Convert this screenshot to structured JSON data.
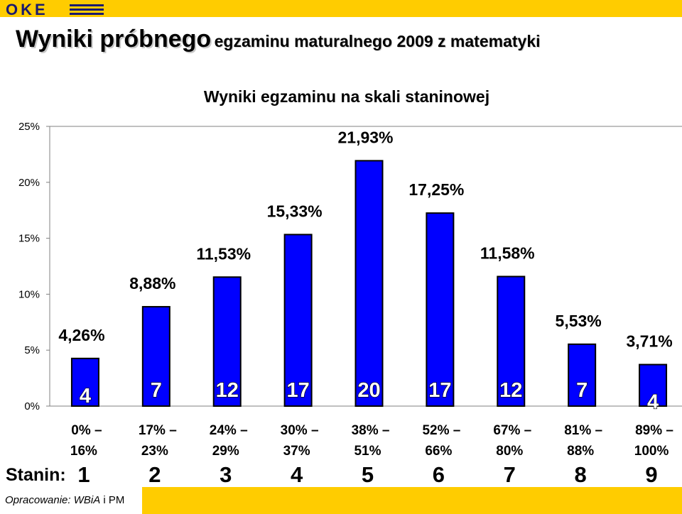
{
  "title": {
    "bold": "Wyniki próbnego",
    "rest": "egzaminu maturalnego 2009 z matematyki"
  },
  "logo_text": "OKE",
  "colors": {
    "brand_yellow": "#ffcc00",
    "bar": "#0000ff",
    "axis": "#808080"
  },
  "chart_data": {
    "type": "bar",
    "title": "Wyniki egzaminu na skali staninowej",
    "categories": [
      "1",
      "2",
      "3",
      "4",
      "5",
      "6",
      "7",
      "8",
      "9"
    ],
    "values": [
      4.26,
      8.88,
      11.53,
      15.33,
      21.93,
      17.25,
      11.58,
      5.53,
      3.71
    ],
    "value_labels": [
      "4,26%",
      "8,88%",
      "11,53%",
      "15,33%",
      "21,93%",
      "17,25%",
      "11,58%",
      "5,53%",
      "3,71%"
    ],
    "inner_labels": [
      "4",
      "7",
      "12",
      "17",
      "20",
      "17",
      "12",
      "7",
      "4"
    ],
    "ranges": [
      [
        "0% –",
        "16%"
      ],
      [
        "17% –",
        "23%"
      ],
      [
        "24% –",
        "29%"
      ],
      [
        "30% –",
        "37%"
      ],
      [
        "38% –",
        "51%"
      ],
      [
        "52% –",
        "66%"
      ],
      [
        "67% –",
        "80%"
      ],
      [
        "81% –",
        "88%"
      ],
      [
        "89% –",
        "100%"
      ]
    ],
    "y_ticks": [
      "0%",
      "5%",
      "10%",
      "15%",
      "20%",
      "25%"
    ],
    "ylim": [
      0,
      25
    ],
    "grid": false
  },
  "stanin_label": "Stanin:",
  "credit": {
    "italic": "Opracowanie: WBiA",
    "rest": " i PM"
  }
}
